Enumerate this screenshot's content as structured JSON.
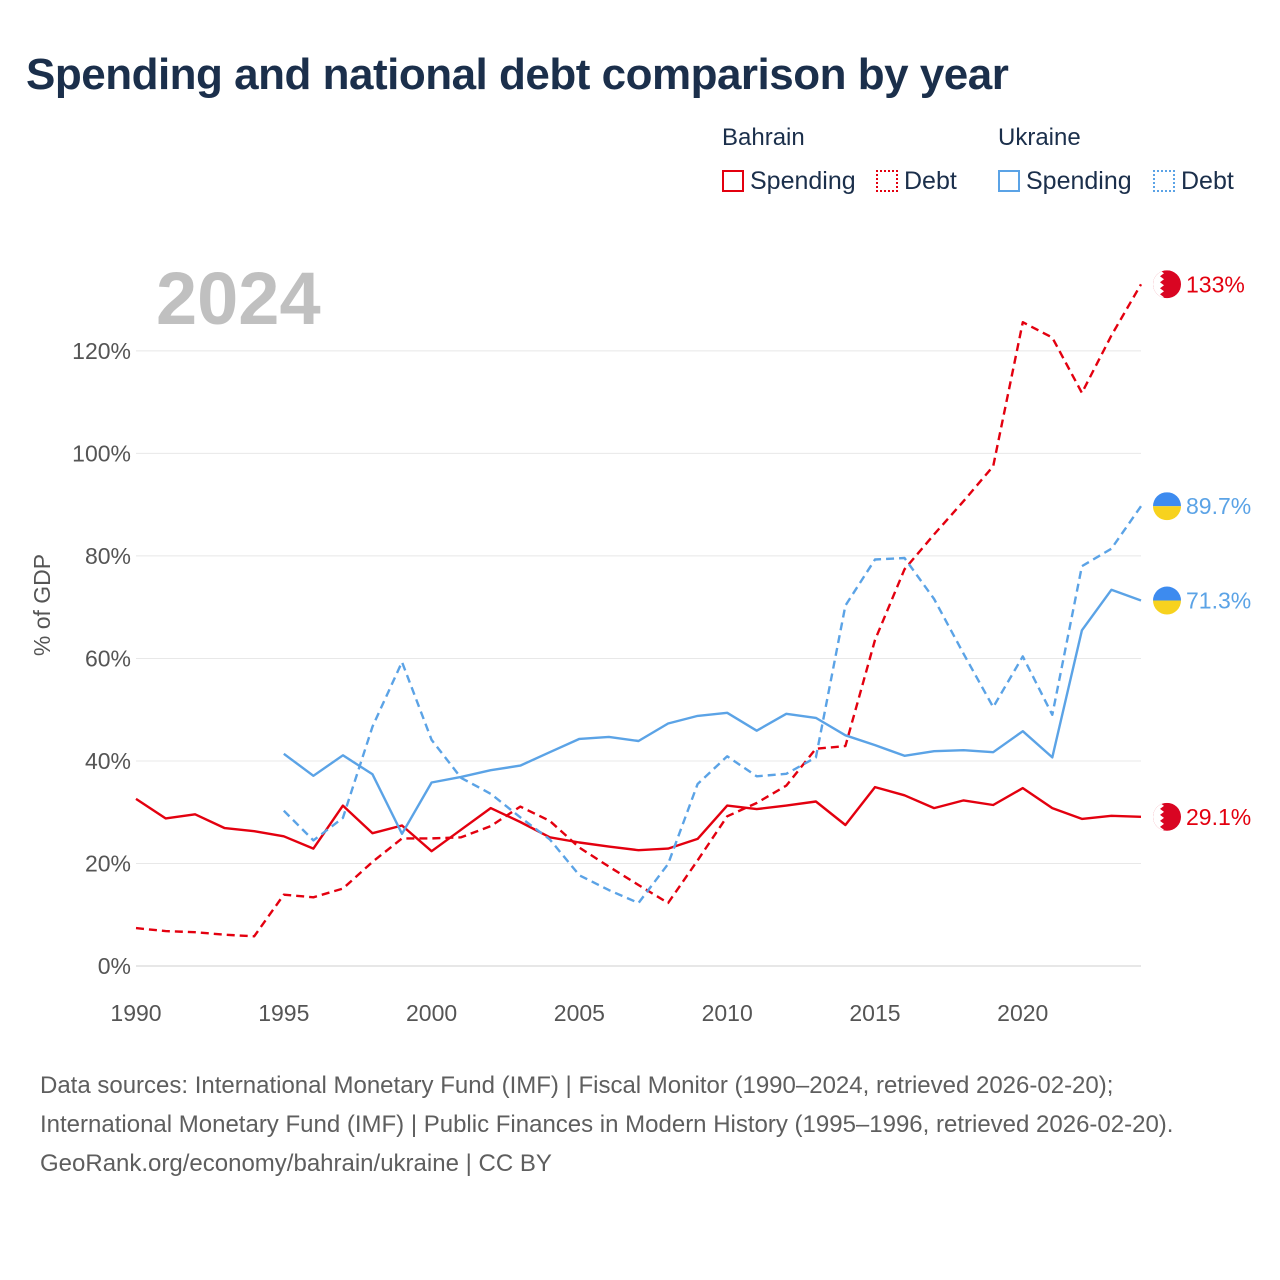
{
  "header": {
    "title": "Spending and national debt comparison by year"
  },
  "legend": {
    "groups": [
      {
        "country": "Bahrain",
        "color": "#e3000f",
        "items": [
          {
            "label": "Spending",
            "style": "solid"
          },
          {
            "label": "Debt",
            "style": "dotted"
          }
        ]
      },
      {
        "country": "Ukraine",
        "color": "#5ba3e6",
        "items": [
          {
            "label": "Spending",
            "style": "solid"
          },
          {
            "label": "Debt",
            "style": "dotted"
          }
        ]
      }
    ]
  },
  "chart_data": {
    "type": "line",
    "title": "Spending and national debt comparison by year",
    "xlabel": "",
    "ylabel": "% of GDP",
    "year_label": "2024",
    "xlim": [
      1990,
      2024
    ],
    "ylim": [
      0,
      135
    ],
    "x_ticks": [
      1990,
      1995,
      2000,
      2005,
      2010,
      2015,
      2020
    ],
    "y_ticks": [
      0,
      20,
      40,
      60,
      80,
      100,
      120
    ],
    "y_tick_labels": [
      "0%",
      "20%",
      "40%",
      "60%",
      "80%",
      "100%",
      "120%"
    ],
    "grid": true,
    "series": [
      {
        "name": "Bahrain Spending",
        "color": "#e3000f",
        "dash": false,
        "end_label": "29.1%",
        "flag": "bahrain",
        "x": [
          1990,
          1991,
          1992,
          1993,
          1994,
          1995,
          1996,
          1997,
          1998,
          1999,
          2000,
          2001,
          2002,
          2003,
          2004,
          2005,
          2006,
          2007,
          2008,
          2009,
          2010,
          2011,
          2012,
          2013,
          2014,
          2015,
          2016,
          2017,
          2018,
          2019,
          2020,
          2021,
          2022,
          2023,
          2024
        ],
        "values": [
          32.6,
          28.8,
          29.6,
          26.9,
          26.3,
          25.3,
          22.9,
          31.3,
          25.9,
          27.4,
          22.4,
          26.6,
          30.8,
          28.1,
          25.1,
          24.1,
          23.3,
          22.6,
          22.9,
          24.8,
          31.3,
          30.6,
          31.3,
          32.1,
          27.5,
          34.9,
          33.3,
          30.8,
          32.3,
          31.4,
          34.7,
          30.8,
          28.7,
          29.3,
          29.1
        ]
      },
      {
        "name": "Bahrain Debt",
        "color": "#e3000f",
        "dash": true,
        "end_label": "133%",
        "flag": "bahrain",
        "x": [
          1990,
          1991,
          1992,
          1993,
          1994,
          1995,
          1996,
          1997,
          1998,
          1999,
          2000,
          2001,
          2002,
          2003,
          2004,
          2005,
          2006,
          2007,
          2008,
          2009,
          2010,
          2011,
          2012,
          2013,
          2014,
          2015,
          2016,
          2017,
          2018,
          2019,
          2020,
          2021,
          2022,
          2023,
          2024
        ],
        "values": [
          7.4,
          6.8,
          6.6,
          6.1,
          5.8,
          13.9,
          13.4,
          15.1,
          20.3,
          24.9,
          24.9,
          25.1,
          27.3,
          31.1,
          28.3,
          23.1,
          19.4,
          15.8,
          12.3,
          20.6,
          29.2,
          31.8,
          35.2,
          42.4,
          42.9,
          63.6,
          77.4,
          84.2,
          90.7,
          97.5,
          125.6,
          122.6,
          111.8,
          123.0,
          133.0
        ]
      },
      {
        "name": "Ukraine Spending",
        "color": "#5ba3e6",
        "dash": false,
        "end_label": "71.3%",
        "flag": "ukraine",
        "x": [
          1995,
          1996,
          1997,
          1998,
          1999,
          2000,
          2001,
          2002,
          2003,
          2004,
          2005,
          2006,
          2007,
          2008,
          2009,
          2010,
          2011,
          2012,
          2013,
          2014,
          2015,
          2016,
          2017,
          2018,
          2019,
          2020,
          2021,
          2022,
          2023,
          2024
        ],
        "values": [
          41.4,
          37.1,
          41.1,
          37.4,
          25.8,
          35.8,
          36.9,
          38.2,
          39.1,
          41.7,
          44.3,
          44.7,
          43.9,
          47.3,
          48.8,
          49.4,
          45.9,
          49.2,
          48.4,
          45.0,
          43.1,
          41.0,
          41.9,
          42.1,
          41.7,
          45.8,
          40.7,
          65.5,
          73.4,
          71.3
        ]
      },
      {
        "name": "Ukraine Debt",
        "color": "#5ba3e6",
        "dash": true,
        "end_label": "89.7%",
        "flag": "ukraine",
        "x": [
          1995,
          1996,
          1997,
          1998,
          1999,
          2000,
          2001,
          2002,
          2003,
          2004,
          2005,
          2006,
          2007,
          2008,
          2009,
          2010,
          2011,
          2012,
          2013,
          2014,
          2015,
          2016,
          2017,
          2018,
          2019,
          2020,
          2021,
          2022,
          2023,
          2024
        ],
        "values": [
          30.3,
          24.5,
          28.9,
          46.7,
          59.3,
          44.1,
          36.7,
          33.6,
          29.0,
          24.7,
          17.7,
          14.8,
          12.3,
          19.9,
          35.5,
          40.9,
          37.0,
          37.5,
          40.7,
          70.3,
          79.3,
          79.6,
          71.6,
          60.9,
          50.5,
          60.4,
          49.0,
          78.0,
          81.4,
          89.7
        ]
      }
    ]
  },
  "footer": {
    "sources": "Data sources: International Monetary Fund (IMF) | Fiscal Monitor (1990–2024, retrieved 2026-02-20); International Monetary Fund (IMF) | Public Finances in Modern History (1995–1996, retrieved 2026-02-20).",
    "credit": "GeoRank.org/economy/bahrain/ukraine | CC BY"
  }
}
